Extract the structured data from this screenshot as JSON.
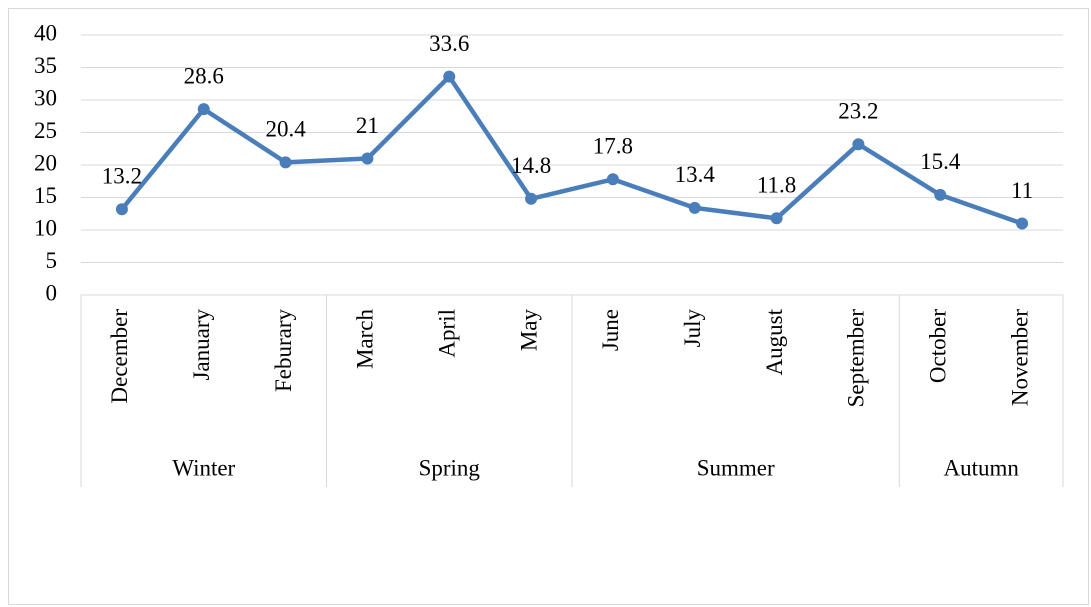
{
  "chart_data": {
    "type": "line",
    "groups": [
      {
        "name": "Winter",
        "categories": [
          "December",
          "January",
          "Feburary"
        ]
      },
      {
        "name": "Spring",
        "categories": [
          "March",
          "April",
          "May"
        ]
      },
      {
        "name": "Summer",
        "categories": [
          "June",
          "July",
          "August",
          "September"
        ]
      },
      {
        "name": "Autumn",
        "categories": [
          "October",
          "November"
        ]
      }
    ],
    "series": [
      {
        "color": "#4a7ebb",
        "values": [
          13.2,
          28.6,
          20.4,
          21,
          33.6,
          14.8,
          17.8,
          13.4,
          11.8,
          23.2,
          15.4,
          11
        ]
      }
    ],
    "ylim": [
      0,
      40
    ],
    "yticks": [
      0,
      5,
      10,
      15,
      20,
      25,
      30,
      35,
      40
    ],
    "grid": true,
    "data_labels": true
  }
}
